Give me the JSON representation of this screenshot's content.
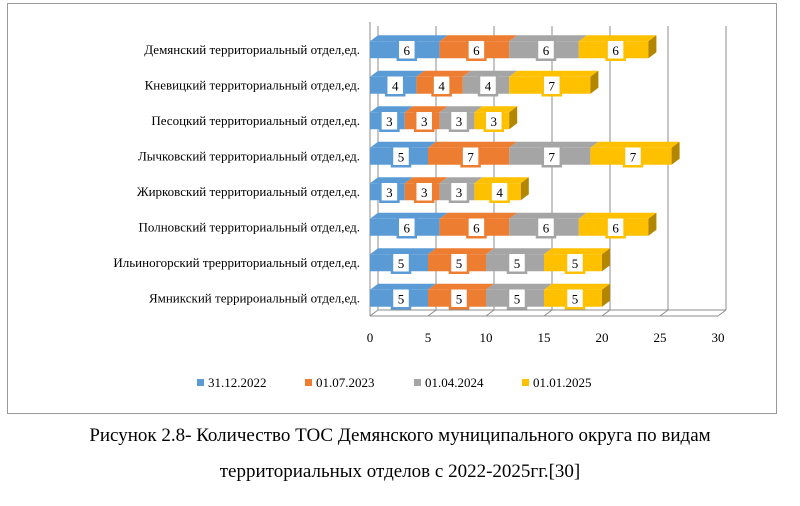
{
  "chart_data": {
    "type": "bar",
    "orientation": "horizontal",
    "stacked": true,
    "categories": [
      "Демянский территориальный отдел,ед.",
      "Кневицкий территориальный отдел,ед.",
      "Песоцкий территориальный отдел,ед.",
      "Лычковский территориальный отдел,ед.",
      "Жирковский территориальный отдел,ед.",
      "Полновский территориальный отдел,ед.",
      "Ильиногорский трерриториальный отдел,ед.",
      "Ямникский террироиальный отдел,ед."
    ],
    "series": [
      {
        "name": "31.12.2022",
        "color": "#5b9bd5",
        "values": [
          6,
          4,
          3,
          5,
          3,
          6,
          5,
          5
        ]
      },
      {
        "name": "01.07.2023",
        "color": "#ed7d31",
        "values": [
          6,
          4,
          3,
          7,
          3,
          6,
          5,
          5
        ]
      },
      {
        "name": "01.04.2024",
        "color": "#a5a5a5",
        "values": [
          6,
          4,
          3,
          7,
          3,
          6,
          5,
          5
        ]
      },
      {
        "name": "01.01.2025",
        "color": "#ffc000",
        "values": [
          6,
          7,
          3,
          7,
          4,
          6,
          5,
          5
        ]
      }
    ],
    "xlim": [
      0,
      30
    ],
    "xticks": [
      0,
      5,
      10,
      15,
      20,
      25,
      30
    ],
    "grid": true,
    "legend_position": "bottom"
  },
  "caption": {
    "line1": "Рисунок 2.8- Количество ТОС Демянского муниципального округа по видам",
    "line2": "территориальных отделов с 2022-2025гг.[30]"
  }
}
